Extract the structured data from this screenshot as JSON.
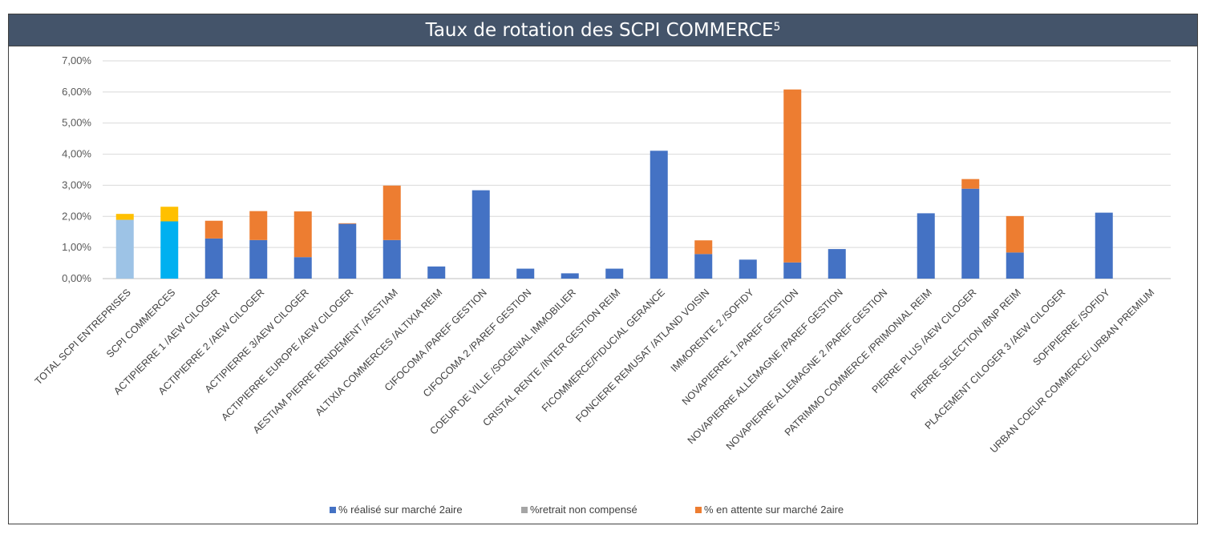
{
  "chart_data": {
    "type": "bar",
    "stacked": true,
    "title": "Taux de rotation des SCPI COMMERCE",
    "title_superscript": "5",
    "ylim": [
      0,
      0.07
    ],
    "yticks": [
      0,
      0.01,
      0.02,
      0.03,
      0.04,
      0.05,
      0.06,
      0.07
    ],
    "ytick_labels": [
      "0,00%",
      "1,00%",
      "2,00%",
      "3,00%",
      "4,00%",
      "5,00%",
      "6,00%",
      "7,00%"
    ],
    "grid": true,
    "legend_position": "bottom",
    "categories": [
      "TOTAL SCPI ENTREPRISES",
      "SCPI COMMERCES",
      "ACTIPIERRE 1 /AEW CILOGER",
      "ACTIPIERRE 2 /AEW CILOGER",
      "ACTIPIERRE 3/AEW CILOGER",
      "ACTIPIERRE EUROPE /AEW CILOGER",
      "AESTIAM PIERRE RENDEMENT /AESTIAM",
      "ALTIXIA COMMERCES /ALTIXIA REIM",
      "CIFOCOMA /PAREF GESTION",
      "CIFOCOMA 2 /PAREF GESTION",
      "COEUR DE VILLE /SOGENIAL IMMOBILIER",
      "CRISTAL RENTE /INTER GESTION REIM",
      "FICOMMERCE/FIDUCIAL GERANCE",
      "FONCIERE REMUSAT /ATLAND VOISIN",
      "IMMORENTE 2 /SOFIDY",
      "NOVAPIERRE 1 /PAREF GESTION",
      "NOVAPIERRE ALLEMAGNE /PAREF GESTION",
      "NOVAPIERRE ALLEMAGNE 2 /PAREF GESTION",
      "PATRIMMO COMMERCE /PRIMONIAL REIM",
      "PIERRE PLUS /AEW CILOGER",
      "PIERRE SELECTION /BNP REIM",
      "PLACEMENT CILOGER 3 /AEW CILOGER",
      "SOFIPIERRE /SOFIDY",
      "URBAN COEUR COMMERCE/ URBAN PREMIUM"
    ],
    "series": [
      {
        "name": "% réalisé sur marché 2aire",
        "color": "#4472c4",
        "values": [
          0.0189,
          0.0184,
          0.0129,
          0.0124,
          0.0069,
          0.0176,
          0.0124,
          0.0039,
          0.0284,
          0.0032,
          0.0017,
          0.0032,
          0.0411,
          0.0079,
          0.0061,
          0.0052,
          0.0095,
          0,
          0.021,
          0.0289,
          0.0084,
          0,
          0.0212,
          0
        ]
      },
      {
        "name": "%retrait non compensé",
        "color": "#a5a5a5",
        "values": [
          0,
          0,
          0,
          0,
          0,
          0,
          0,
          0,
          0,
          0,
          0,
          0,
          0,
          0,
          0,
          0,
          0,
          0,
          0,
          0,
          0,
          0,
          0,
          0
        ]
      },
      {
        "name": "% en attente sur marché 2aire",
        "color": "#ed7d31",
        "values": [
          0.0019,
          0.0047,
          0.0057,
          0.0093,
          0.0147,
          0.0002,
          0.0175,
          0,
          0,
          0,
          0,
          0,
          0,
          0.0044,
          0,
          0.0556,
          0,
          0,
          0,
          0.0031,
          0.0117,
          0,
          0,
          0
        ]
      }
    ],
    "highlight_colors": {
      "TOTAL SCPI ENTREPRISES": {
        "base": "#9dc3e6",
        "top": "#ffc000"
      },
      "SCPI COMMERCES": {
        "base": "#00b0f0",
        "top": "#ffc000"
      }
    }
  }
}
